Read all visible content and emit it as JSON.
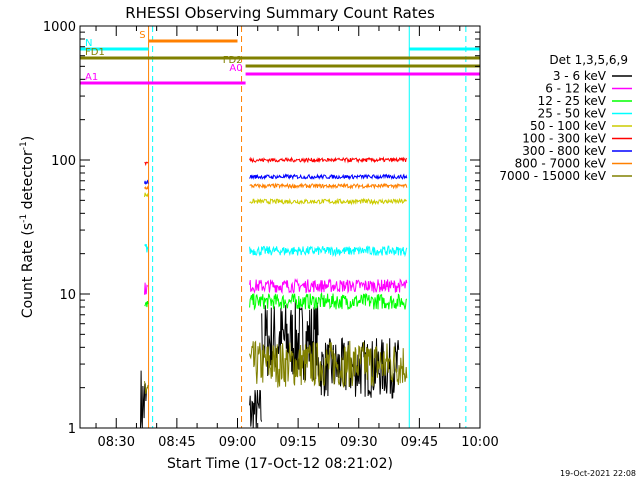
{
  "chart_data": {
    "type": "line",
    "title": "RHESSI Observing Summary Count Rates",
    "xlabel": "Start Time (17-Oct-12 08:21:02)",
    "ylabel_main": "Count Rate (s",
    "ylabel_sup1": "-1",
    "ylabel_mid": " detector",
    "ylabel_sup2": "-1",
    "ylabel_end": ")",
    "yscale": "log",
    "ylim": [
      1,
      1000
    ],
    "xlim": [
      "08:21:02",
      "10:00"
    ],
    "xticks": [
      "08:30",
      "08:45",
      "09:00",
      "09:15",
      "09:30",
      "09:45",
      "10:00"
    ],
    "yticks": [
      "1",
      "10",
      "100",
      "1000"
    ],
    "footer": "19-Oct-2021 22:08",
    "legend": {
      "title": "Det 1,3,5,6,9",
      "entries": [
        {
          "label": "3 - 6 keV",
          "color": "#000000"
        },
        {
          "label": "6 - 12 keV",
          "color": "#ff00ff"
        },
        {
          "label": "12 - 25 keV",
          "color": "#00ff00"
        },
        {
          "label": "25 - 50 keV",
          "color": "#00ffff"
        },
        {
          "label": "50 - 100 keV",
          "color": "#cccc00"
        },
        {
          "label": "100 - 300 keV",
          "color": "#ff0000"
        },
        {
          "label": "300 - 800 keV",
          "color": "#0000ff"
        },
        {
          "label": "800 - 7000 keV",
          "color": "#ff8000"
        },
        {
          "label": "7000 - 15000 keV",
          "color": "#808000"
        }
      ]
    },
    "state_bars": [
      {
        "label": "S",
        "color": "#ff8000",
        "start": "08:38:00",
        "end": "09:00:00"
      },
      {
        "label": "N",
        "color": "#00ffff",
        "start": "08:21:02",
        "end": "08:38:00"
      },
      {
        "label": "N",
        "color": "#00ffff",
        "start": "09:42:30",
        "end": "10:00:00"
      },
      {
        "label": "FD1",
        "color": "#808000",
        "start": "08:21:02",
        "end": "10:00:00"
      },
      {
        "label": "FD2",
        "color": "#808000",
        "start": "09:02:00",
        "end": "10:00:00"
      },
      {
        "label": "A0",
        "color": "#ff00ff",
        "start": "09:02:00",
        "end": "10:00:00"
      },
      {
        "label": "A1",
        "color": "#ff00ff",
        "start": "08:21:02",
        "end": "09:02:00"
      }
    ],
    "vlines": [
      {
        "time": "08:21:02",
        "color": "#00ffff",
        "style": "solid"
      },
      {
        "time": "08:38:00",
        "color": "#ff8000",
        "style": "solid"
      },
      {
        "time": "08:39:00",
        "color": "#00ffff",
        "style": "dashed"
      },
      {
        "time": "09:01:00",
        "color": "#ff8000",
        "style": "dashed"
      },
      {
        "time": "09:42:30",
        "color": "#00ffff",
        "style": "solid"
      },
      {
        "time": "09:56:30",
        "color": "#00ffff",
        "style": "dashed"
      }
    ],
    "series": [
      {
        "name": "3 - 6 keV",
        "color": "#000000",
        "segments": [
          {
            "start": "08:36:00",
            "end": "08:37:30",
            "base": 1.5,
            "noise": 0.6
          },
          {
            "start": "09:03:00",
            "end": "09:06:00",
            "base": 1.3,
            "noise": 0.4
          },
          {
            "start": "09:06:00",
            "end": "09:20:00",
            "base": 4.5,
            "noise": 0.6
          },
          {
            "start": "09:20:00",
            "end": "09:40:00",
            "base": 2.8,
            "noise": 0.45
          }
        ]
      },
      {
        "name": "7000 - 15000 keV",
        "color": "#808000",
        "segments": [
          {
            "start": "08:37:00",
            "end": "08:38:00",
            "base": 2.0,
            "noise": 0.3
          },
          {
            "start": "09:03:00",
            "end": "09:42:00",
            "base": 3.0,
            "noise": 0.35
          }
        ]
      },
      {
        "name": "12 - 25 keV",
        "color": "#00ff00",
        "segments": [
          {
            "start": "08:37:00",
            "end": "08:38:00",
            "base": 8.0,
            "noise": 0.12
          },
          {
            "start": "09:03:00",
            "end": "09:42:00",
            "base": 8.8,
            "noise": 0.12
          }
        ]
      },
      {
        "name": "6 - 12 keV",
        "color": "#ff00ff",
        "segments": [
          {
            "start": "08:37:00",
            "end": "08:38:00",
            "base": 11.0,
            "noise": 0.1
          },
          {
            "start": "09:03:00",
            "end": "09:42:00",
            "base": 11.5,
            "noise": 0.1
          }
        ]
      },
      {
        "name": "25 - 50 keV",
        "color": "#00ffff",
        "segments": [
          {
            "start": "08:37:00",
            "end": "08:38:00",
            "base": 22.0,
            "noise": 0.08
          },
          {
            "start": "09:03:00",
            "end": "09:42:00",
            "base": 21.0,
            "noise": 0.07
          }
        ]
      },
      {
        "name": "50 - 100 keV",
        "color": "#cccc00",
        "segments": [
          {
            "start": "08:37:00",
            "end": "08:38:00",
            "base": 55.0,
            "noise": 0.04
          },
          {
            "start": "09:03:00",
            "end": "09:42:00",
            "base": 49.0,
            "noise": 0.035
          }
        ]
      },
      {
        "name": "800 - 7000 keV",
        "color": "#ff8000",
        "segments": [
          {
            "start": "08:37:00",
            "end": "08:38:00",
            "base": 62.0,
            "noise": 0.03
          },
          {
            "start": "09:03:00",
            "end": "09:42:00",
            "base": 64.0,
            "noise": 0.03
          }
        ]
      },
      {
        "name": "300 - 800 keV",
        "color": "#0000ff",
        "segments": [
          {
            "start": "08:37:00",
            "end": "08:38:00",
            "base": 68.0,
            "noise": 0.03
          },
          {
            "start": "09:03:00",
            "end": "09:42:00",
            "base": 75.0,
            "noise": 0.03
          }
        ]
      },
      {
        "name": "100 - 300 keV",
        "color": "#ff0000",
        "segments": [
          {
            "start": "08:37:00",
            "end": "08:38:00",
            "base": 95.0,
            "noise": 0.03
          },
          {
            "start": "09:03:00",
            "end": "09:42:00",
            "base": 100.0,
            "noise": 0.03
          }
        ]
      }
    ]
  }
}
